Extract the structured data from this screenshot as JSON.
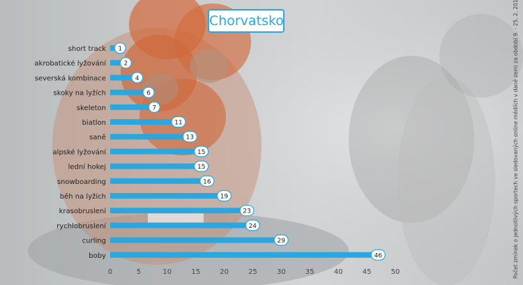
{
  "chart_data": {
    "type": "bar",
    "orientation": "horizontal",
    "title": "Chorvatsko",
    "categories": [
      "short track",
      "akrobatické lyžování",
      "severská kombinace",
      "skoky na lyžích",
      "skeleton",
      "biatlon",
      "saně",
      "alpské lyžování",
      "lední hokej",
      "snowboarding",
      "běh na lyžích",
      "krasobruslení",
      "rychlobruslení",
      "curling",
      "boby"
    ],
    "values": [
      1,
      2,
      4,
      6,
      7,
      11,
      13,
      15,
      15,
      16,
      19,
      23,
      24,
      29,
      46
    ],
    "xlim": [
      0,
      50
    ],
    "xticks": [
      0,
      5,
      10,
      15,
      20,
      25,
      30,
      35,
      40,
      45,
      50
    ],
    "grid": false,
    "legend": "none",
    "annotation": "Počet zmínek o jednotlivých sportech ve sledovaných online médiích v dané zemi za období 9. - 25. 2. 2018.",
    "colors": {
      "bar": "#2aa7df",
      "badge_border": "#2aa7df",
      "badge_fill": "#ffffff",
      "label": "#222222",
      "tick": "#444444"
    }
  }
}
